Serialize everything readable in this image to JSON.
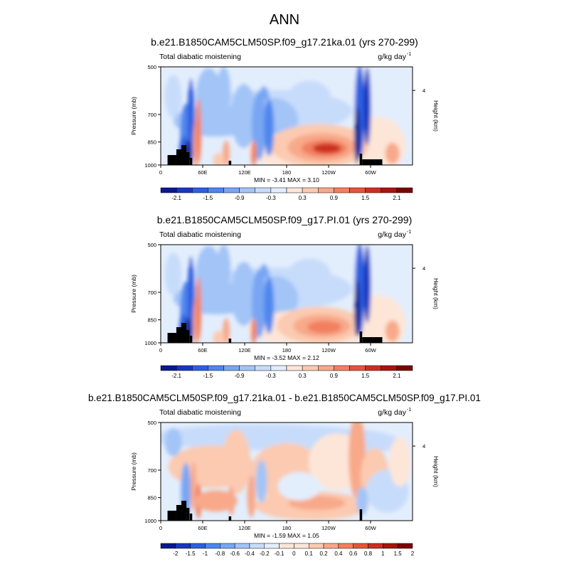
{
  "figure": {
    "title": "ANN"
  },
  "colors": {
    "background": "#ffffff",
    "land_mask": "#000000",
    "palette": [
      "#0a1a8c",
      "#1837bf",
      "#2d5fe0",
      "#4f86ee",
      "#78a6f3",
      "#a3c4f7",
      "#c7dcfb",
      "#e3eefd",
      "#fde6d8",
      "#fbcab0",
      "#f8a98a",
      "#f28060",
      "#e4553b",
      "#cc2f1f",
      "#a7150e",
      "#7a0403"
    ]
  },
  "chart_data": [
    {
      "type": "heatmap",
      "title": "b.e21.B1850CAM5CLM50SP.f09_g17.21ka.01 (yrs 270-299)",
      "left_label": "Total diabatic moistening",
      "units_label": "g/kg day",
      "units_exp": "-1",
      "ylabel": "Pressure (mb)",
      "right_label": "Height (km)",
      "yticks": [
        "500",
        "700",
        "850",
        "1000"
      ],
      "ytick_values": [
        500,
        700,
        850,
        1000
      ],
      "right_ticks": [
        "4"
      ],
      "right_tick_values": [
        4
      ],
      "xticks": [
        "0",
        "60E",
        "120E",
        "180",
        "120W",
        "60W"
      ],
      "xtick_values": [
        0,
        60,
        120,
        180,
        240,
        300
      ],
      "xlim": [
        0,
        360
      ],
      "ylim": [
        500,
        1000
      ],
      "min_label": "MIN = -3.41  MAX =  3.10",
      "min": -3.41,
      "max": 3.1,
      "colorbar_labels": [
        "-2.1",
        "-1.5",
        "-0.9",
        "-0.3",
        "0.3",
        "0.9",
        "1.5",
        "2.1"
      ],
      "colorbar_levels": [
        -2.4,
        -2.1,
        -1.8,
        -1.5,
        -1.2,
        -0.9,
        -0.6,
        -0.3,
        0,
        0.3,
        0.6,
        0.9,
        1.2,
        1.5,
        1.8,
        2.1,
        2.4
      ]
    },
    {
      "type": "heatmap",
      "title": "b.e21.B1850CAM5CLM50SP.f09_g17.PI.01 (yrs 270-299)",
      "left_label": "Total diabatic moistening",
      "units_label": "g/kg day",
      "units_exp": "-1",
      "ylabel": "Pressure (mb)",
      "right_label": "Height (km)",
      "yticks": [
        "500",
        "700",
        "850",
        "1000"
      ],
      "ytick_values": [
        500,
        700,
        850,
        1000
      ],
      "right_ticks": [
        "4"
      ],
      "right_tick_values": [
        4
      ],
      "xticks": [
        "0",
        "60E",
        "120E",
        "180",
        "120W",
        "60W"
      ],
      "xtick_values": [
        0,
        60,
        120,
        180,
        240,
        300
      ],
      "xlim": [
        0,
        360
      ],
      "ylim": [
        500,
        1000
      ],
      "min_label": "MIN = -3.52  MAX =  2.12",
      "min": -3.52,
      "max": 2.12,
      "colorbar_labels": [
        "-2.1",
        "-1.5",
        "-0.9",
        "-0.3",
        "0.3",
        "0.9",
        "1.5",
        "2.1"
      ],
      "colorbar_levels": [
        -2.4,
        -2.1,
        -1.8,
        -1.5,
        -1.2,
        -0.9,
        -0.6,
        -0.3,
        0,
        0.3,
        0.6,
        0.9,
        1.2,
        1.5,
        1.8,
        2.1,
        2.4
      ]
    },
    {
      "type": "heatmap",
      "title": "b.e21.B1850CAM5CLM50SP.f09_g17.21ka.01 - b.e21.B1850CAM5CLM50SP.f09_g17.PI.01",
      "left_label": "Total diabatic moistening",
      "units_label": "g/kg day",
      "units_exp": "-1",
      "ylabel": "Pressure (mb)",
      "right_label": "Height (km)",
      "yticks": [
        "500",
        "700",
        "850",
        "1000"
      ],
      "ytick_values": [
        500,
        700,
        850,
        1000
      ],
      "right_ticks": [
        "4"
      ],
      "right_tick_values": [
        4
      ],
      "xticks": [
        "0",
        "60E",
        "120E",
        "180",
        "120W",
        "60W"
      ],
      "xtick_values": [
        0,
        60,
        120,
        180,
        240,
        300
      ],
      "xlim": [
        0,
        360
      ],
      "ylim": [
        500,
        1000
      ],
      "min_label": "MIN = -1.59  MAX =  1.05",
      "min": -1.59,
      "max": 1.05,
      "colorbar_labels": [
        "-2",
        "-1.5",
        "-1",
        "-0.8",
        "-0.6",
        "-0.4",
        "-0.2",
        "-0.1",
        "0",
        "0.1",
        "0.2",
        "0.4",
        "0.6",
        "0.8",
        "1",
        "1.5",
        "2"
      ],
      "colorbar_levels": [
        -2.5,
        -2,
        -1.5,
        -1,
        -0.8,
        -0.6,
        -0.4,
        -0.2,
        -0.1,
        0,
        0.1,
        0.2,
        0.4,
        0.6,
        0.8,
        1,
        1.5,
        2
      ]
    }
  ]
}
